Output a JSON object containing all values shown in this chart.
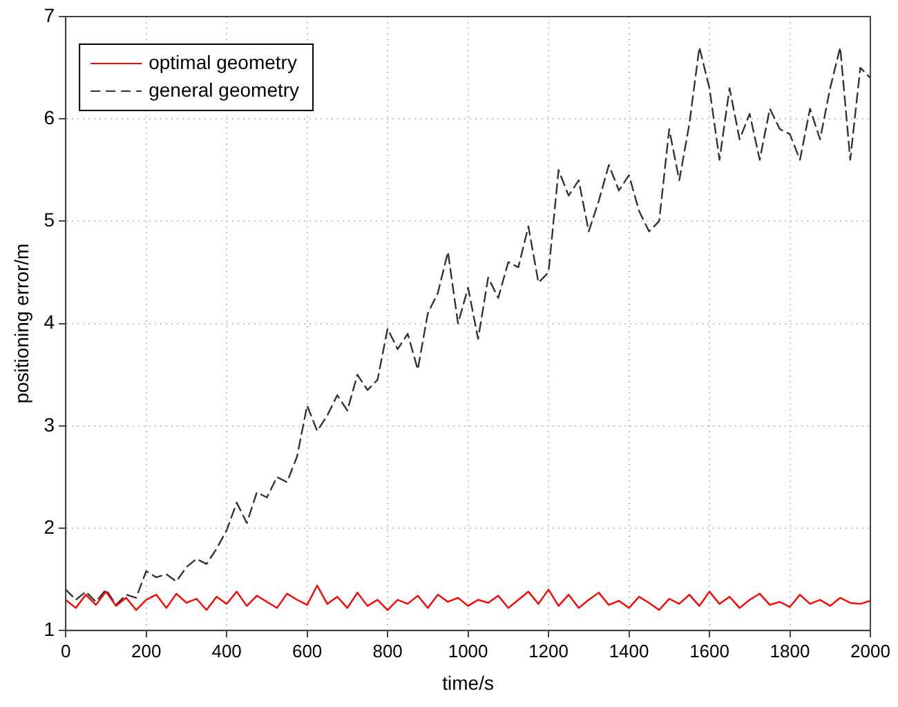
{
  "chart_data": {
    "type": "line",
    "xlabel": "time/s",
    "ylabel": "positioning error/m",
    "x": [
      0,
      25,
      50,
      75,
      100,
      125,
      150,
      175,
      200,
      225,
      250,
      275,
      300,
      325,
      350,
      375,
      400,
      425,
      450,
      475,
      500,
      525,
      550,
      575,
      600,
      625,
      650,
      675,
      700,
      725,
      750,
      775,
      800,
      825,
      850,
      875,
      900,
      925,
      950,
      975,
      1000,
      1025,
      1050,
      1075,
      1100,
      1125,
      1150,
      1175,
      1200,
      1225,
      1250,
      1275,
      1300,
      1325,
      1350,
      1375,
      1400,
      1425,
      1450,
      1475,
      1500,
      1525,
      1550,
      1575,
      1600,
      1625,
      1650,
      1675,
      1700,
      1725,
      1750,
      1775,
      1800,
      1825,
      1850,
      1875,
      1900,
      1925,
      1950,
      1975,
      2000
    ],
    "series": [
      {
        "name": "optimal geometry",
        "color": "#ff0000",
        "line_style": "solid",
        "values": [
          1.3,
          1.22,
          1.35,
          1.25,
          1.38,
          1.24,
          1.32,
          1.2,
          1.3,
          1.35,
          1.22,
          1.36,
          1.27,
          1.31,
          1.2,
          1.33,
          1.26,
          1.38,
          1.24,
          1.34,
          1.28,
          1.22,
          1.36,
          1.3,
          1.25,
          1.44,
          1.26,
          1.33,
          1.22,
          1.37,
          1.24,
          1.3,
          1.2,
          1.3,
          1.26,
          1.34,
          1.22,
          1.35,
          1.28,
          1.32,
          1.24,
          1.3,
          1.27,
          1.34,
          1.22,
          1.3,
          1.38,
          1.26,
          1.4,
          1.24,
          1.35,
          1.22,
          1.3,
          1.37,
          1.25,
          1.29,
          1.22,
          1.33,
          1.27,
          1.2,
          1.31,
          1.26,
          1.35,
          1.24,
          1.38,
          1.26,
          1.33,
          1.22,
          1.3,
          1.36,
          1.25,
          1.28,
          1.23,
          1.35,
          1.26,
          1.3,
          1.24,
          1.32,
          1.27,
          1.26,
          1.29
        ]
      },
      {
        "name": "general geometry",
        "color": "#333333",
        "line_style": "dashed",
        "values": [
          1.4,
          1.3,
          1.38,
          1.28,
          1.4,
          1.25,
          1.35,
          1.32,
          1.58,
          1.52,
          1.55,
          1.48,
          1.62,
          1.7,
          1.65,
          1.8,
          1.98,
          2.25,
          2.05,
          2.35,
          2.3,
          2.5,
          2.45,
          2.7,
          3.2,
          2.95,
          3.1,
          3.3,
          3.15,
          3.5,
          3.35,
          3.45,
          3.95,
          3.75,
          3.9,
          3.55,
          4.1,
          4.3,
          4.7,
          4.0,
          4.35,
          3.85,
          4.45,
          4.25,
          4.6,
          4.55,
          4.95,
          4.4,
          4.5,
          5.5,
          5.25,
          5.4,
          4.9,
          5.2,
          5.55,
          5.3,
          5.45,
          5.1,
          4.9,
          5.0,
          5.9,
          5.4,
          5.95,
          6.7,
          6.3,
          5.6,
          6.3,
          5.8,
          6.05,
          5.6,
          6.1,
          5.9,
          5.85,
          5.6,
          6.1,
          5.8,
          6.3,
          6.7,
          5.6,
          6.5,
          6.4
        ]
      }
    ],
    "xlim": [
      0,
      2000
    ],
    "xticks": [
      0,
      200,
      400,
      600,
      800,
      1000,
      1200,
      1400,
      1600,
      1800,
      2000
    ],
    "ylim": [
      1,
      7
    ],
    "yticks": [
      1,
      2,
      3,
      4,
      5,
      6,
      7
    ],
    "grid": true,
    "legend": "top left",
    "marker": "none"
  }
}
